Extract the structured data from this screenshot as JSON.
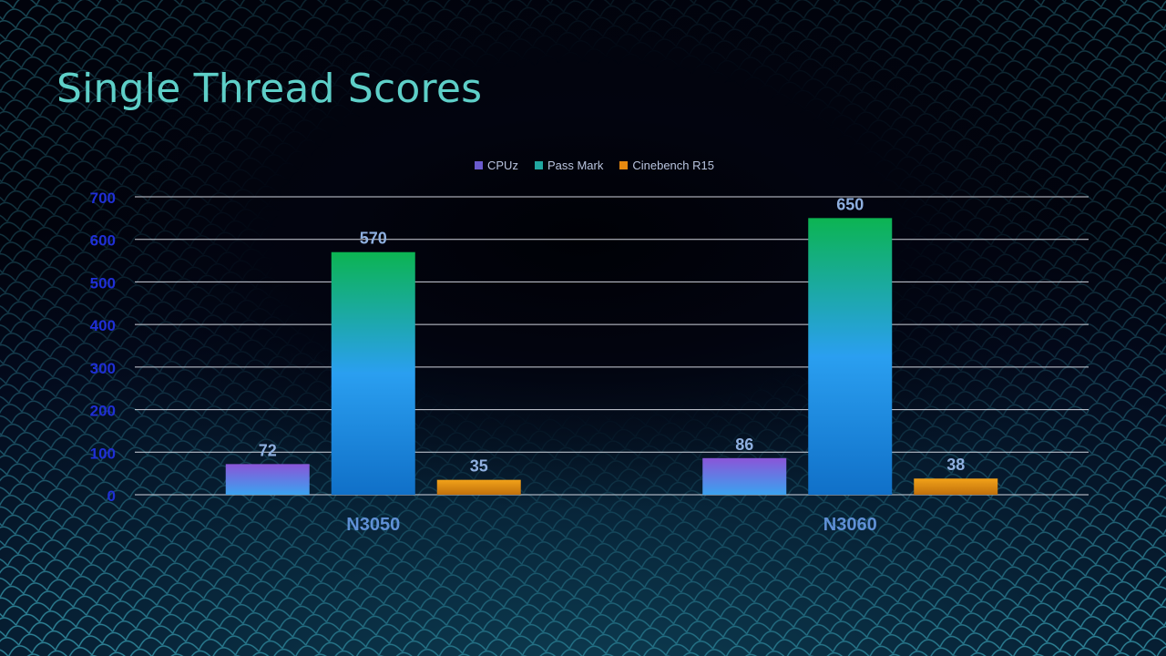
{
  "slide": {
    "title": "Single Thread Scores"
  },
  "colors": {
    "background": "#020410",
    "title": "#5ecfc8",
    "axis_ticks": "#1f2fd6",
    "gridlines": "#e6e9f2",
    "data_labels": "#8fb0e0",
    "category_labels": "#5f90d6"
  },
  "chart_data": {
    "type": "bar",
    "title": "",
    "xlabel": "",
    "ylabel": "",
    "categories": [
      "N3050",
      "N3060"
    ],
    "series": [
      {
        "name": "CPUz",
        "values": [
          72,
          86
        ],
        "color": "#6a5acd",
        "gradient": [
          "#8a55d8",
          "#3aa3f0"
        ]
      },
      {
        "name": "Pass Mark",
        "values": [
          570,
          650
        ],
        "color": "#21a7a0",
        "gradient": [
          "#0cb452",
          "#2a9ff0",
          "#1070c8"
        ]
      },
      {
        "name": "Cinebench R15",
        "values": [
          35,
          38
        ],
        "color": "#e88a10",
        "gradient": [
          "#f2a219",
          "#c0700c"
        ]
      }
    ],
    "ylim": [
      0,
      700
    ],
    "yticks": [
      0,
      100,
      200,
      300,
      400,
      500,
      600,
      700
    ],
    "grid": true,
    "legend_position": "top-center",
    "data_labels": true
  }
}
